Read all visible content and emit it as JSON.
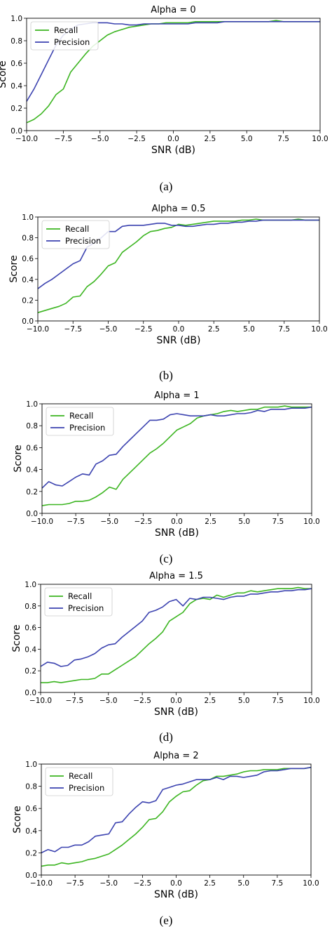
{
  "figure": {
    "line_colors": {
      "Recall": "#3cb521",
      "Precision": "#3c43b0"
    }
  },
  "chart_data": [
    {
      "type": "line",
      "caption": "(a)",
      "title": "Alpha = 0",
      "xlabel": "SNR (dB)",
      "ylabel": "Score",
      "xlim": [
        -10,
        10
      ],
      "ylim": [
        0,
        1.0
      ],
      "xticks": [
        -10.0,
        -7.5,
        -5.0,
        -2.5,
        0.0,
        2.5,
        5.0,
        7.5,
        10.0
      ],
      "xtick_labels": [
        "−10.0",
        "−7.5",
        "−5.0",
        "−2.5",
        "0.0",
        "2.5",
        "5.0",
        "7.5",
        "10.0"
      ],
      "yticks": [
        0.0,
        0.2,
        0.4,
        0.6,
        0.8,
        1.0
      ],
      "ytick_labels": [
        "0.0",
        "0.2",
        "0.4",
        "0.6",
        "0.8",
        "1.0"
      ],
      "legend_position": "top-left",
      "grid": false,
      "series": [
        {
          "name": "Recall",
          "color": "#3cb521",
          "x": [
            -10,
            -9.5,
            -9,
            -8.5,
            -8,
            -7.5,
            -7,
            -6.5,
            -6,
            -5.5,
            -5,
            -4.5,
            -4,
            -3.5,
            -3,
            -2.5,
            -2,
            -1.5,
            -1,
            -0.5,
            0,
            0.5,
            1,
            1.5,
            2,
            2.5,
            3,
            3.5,
            4,
            4.5,
            5,
            5.5,
            6,
            6.5,
            7,
            7.5,
            8,
            8.5,
            9,
            9.5,
            10
          ],
          "y": [
            0.07,
            0.1,
            0.15,
            0.22,
            0.32,
            0.37,
            0.52,
            0.6,
            0.68,
            0.75,
            0.8,
            0.85,
            0.88,
            0.9,
            0.92,
            0.93,
            0.94,
            0.95,
            0.95,
            0.96,
            0.96,
            0.96,
            0.96,
            0.97,
            0.97,
            0.97,
            0.97,
            0.97,
            0.97,
            0.97,
            0.97,
            0.97,
            0.97,
            0.97,
            0.98,
            0.97,
            0.97,
            0.97,
            0.97,
            0.97,
            0.97
          ]
        },
        {
          "name": "Precision",
          "color": "#3c43b0",
          "x": [
            -10,
            -9.5,
            -9,
            -8.5,
            -8,
            -7.5,
            -7,
            -6.5,
            -6,
            -5.5,
            -5,
            -4.5,
            -4,
            -3.5,
            -3,
            -2.5,
            -2,
            -1.5,
            -1,
            -0.5,
            0,
            0.5,
            1,
            1.5,
            2,
            2.5,
            3,
            3.5,
            4,
            4.5,
            5,
            5.5,
            6,
            6.5,
            7,
            7.5,
            8,
            8.5,
            9,
            9.5,
            10
          ],
          "y": [
            0.26,
            0.37,
            0.5,
            0.63,
            0.76,
            0.85,
            0.9,
            0.94,
            0.95,
            0.96,
            0.96,
            0.96,
            0.95,
            0.95,
            0.94,
            0.94,
            0.95,
            0.95,
            0.95,
            0.95,
            0.95,
            0.95,
            0.95,
            0.96,
            0.96,
            0.96,
            0.96,
            0.97,
            0.97,
            0.97,
            0.97,
            0.97,
            0.97,
            0.97,
            0.97,
            0.97,
            0.97,
            0.97,
            0.97,
            0.97,
            0.97
          ]
        }
      ]
    },
    {
      "type": "line",
      "caption": "(b)",
      "title": "Alpha = 0.5",
      "xlabel": "SNR (dB)",
      "ylabel": "Score",
      "xlim": [
        -10,
        10
      ],
      "ylim": [
        0,
        1.0
      ],
      "xticks": [
        -10.0,
        -7.5,
        -5.0,
        -2.5,
        0.0,
        2.5,
        5.0,
        7.5,
        10.0
      ],
      "xtick_labels": [
        "−10.0",
        "−7.5",
        "−5.0",
        "−2.5",
        "0.0",
        "2.5",
        "5.0",
        "7.5",
        "10.0"
      ],
      "yticks": [
        0.0,
        0.2,
        0.4,
        0.6,
        0.8,
        1.0
      ],
      "ytick_labels": [
        "0.0",
        "0.2",
        "0.4",
        "0.6",
        "0.8",
        "1.0"
      ],
      "legend_position": "top-left",
      "grid": false,
      "series": [
        {
          "name": "Recall",
          "color": "#3cb521",
          "x": [
            -10,
            -9.5,
            -9,
            -8.5,
            -8,
            -7.5,
            -7,
            -6.5,
            -6,
            -5.5,
            -5,
            -4.5,
            -4,
            -3.5,
            -3,
            -2.5,
            -2,
            -1.5,
            -1,
            -0.5,
            0,
            0.5,
            1,
            1.5,
            2,
            2.5,
            3,
            3.5,
            4,
            4.5,
            5,
            5.5,
            6,
            6.5,
            7,
            7.5,
            8,
            8.5,
            9,
            9.5,
            10
          ],
          "y": [
            0.08,
            0.1,
            0.12,
            0.14,
            0.17,
            0.23,
            0.24,
            0.33,
            0.38,
            0.45,
            0.53,
            0.56,
            0.66,
            0.71,
            0.76,
            0.82,
            0.86,
            0.87,
            0.89,
            0.9,
            0.93,
            0.92,
            0.93,
            0.94,
            0.95,
            0.96,
            0.96,
            0.96,
            0.96,
            0.97,
            0.97,
            0.98,
            0.97,
            0.97,
            0.97,
            0.97,
            0.97,
            0.98,
            0.97,
            0.97,
            0.97
          ]
        },
        {
          "name": "Precision",
          "color": "#3c43b0",
          "x": [
            -10,
            -9.5,
            -9,
            -8.5,
            -8,
            -7.5,
            -7,
            -6.5,
            -6,
            -5.5,
            -5,
            -4.5,
            -4,
            -3.5,
            -3,
            -2.5,
            -2,
            -1.5,
            -1,
            -0.5,
            0,
            0.5,
            1,
            1.5,
            2,
            2.5,
            3,
            3.5,
            4,
            4.5,
            5,
            5.5,
            6,
            6.5,
            7,
            7.5,
            8,
            8.5,
            9,
            9.5,
            10
          ],
          "y": [
            0.31,
            0.36,
            0.4,
            0.45,
            0.5,
            0.55,
            0.58,
            0.71,
            0.75,
            0.8,
            0.86,
            0.86,
            0.91,
            0.92,
            0.92,
            0.92,
            0.93,
            0.94,
            0.94,
            0.92,
            0.92,
            0.91,
            0.91,
            0.92,
            0.93,
            0.93,
            0.94,
            0.94,
            0.95,
            0.95,
            0.96,
            0.96,
            0.97,
            0.97,
            0.97,
            0.97,
            0.97,
            0.97,
            0.97,
            0.97,
            0.97
          ]
        }
      ]
    },
    {
      "type": "line",
      "caption": "(c)",
      "title": "Alpha = 1",
      "xlabel": "SNR (dB)",
      "ylabel": "Score",
      "xlim": [
        -10,
        10
      ],
      "ylim": [
        0,
        1.0
      ],
      "xticks": [
        -10.0,
        -7.5,
        -5.0,
        -2.5,
        0.0,
        2.5,
        5.0,
        7.5,
        10.0
      ],
      "xtick_labels": [
        "−10.0",
        "−7.5",
        "−5.0",
        "−2.5",
        "0.0",
        "2.5",
        "5.0",
        "7.5",
        "10.0"
      ],
      "yticks": [
        0.0,
        0.2,
        0.4,
        0.6,
        0.8,
        1.0
      ],
      "ytick_labels": [
        "0.0",
        "0.2",
        "0.4",
        "0.6",
        "0.8",
        "1.0"
      ],
      "legend_position": "top-left",
      "grid": false,
      "series": [
        {
          "name": "Recall",
          "color": "#3cb521",
          "x": [
            -10,
            -9.5,
            -9,
            -8.5,
            -8,
            -7.5,
            -7,
            -6.5,
            -6,
            -5.5,
            -5,
            -4.5,
            -4,
            -3.5,
            -3,
            -2.5,
            -2,
            -1.5,
            -1,
            -0.5,
            0,
            0.5,
            1,
            1.5,
            2,
            2.5,
            3,
            3.5,
            4,
            4.5,
            5,
            5.5,
            6,
            6.5,
            7,
            7.5,
            8,
            8.5,
            9,
            9.5,
            10
          ],
          "y": [
            0.07,
            0.08,
            0.08,
            0.08,
            0.09,
            0.11,
            0.11,
            0.12,
            0.15,
            0.19,
            0.24,
            0.22,
            0.31,
            0.37,
            0.43,
            0.49,
            0.55,
            0.59,
            0.64,
            0.7,
            0.76,
            0.79,
            0.82,
            0.87,
            0.89,
            0.9,
            0.91,
            0.93,
            0.94,
            0.93,
            0.94,
            0.95,
            0.95,
            0.97,
            0.97,
            0.97,
            0.98,
            0.97,
            0.97,
            0.97,
            0.97
          ]
        },
        {
          "name": "Precision",
          "color": "#3c43b0",
          "x": [
            -10,
            -9.5,
            -9,
            -8.5,
            -8,
            -7.5,
            -7,
            -6.5,
            -6,
            -5.5,
            -5,
            -4.5,
            -4,
            -3.5,
            -3,
            -2.5,
            -2,
            -1.5,
            -1,
            -0.5,
            0,
            0.5,
            1,
            1.5,
            2,
            2.5,
            3,
            3.5,
            4,
            4.5,
            5,
            5.5,
            6,
            6.5,
            7,
            7.5,
            8,
            8.5,
            9,
            9.5,
            10
          ],
          "y": [
            0.23,
            0.29,
            0.26,
            0.25,
            0.29,
            0.33,
            0.36,
            0.35,
            0.45,
            0.48,
            0.53,
            0.54,
            0.61,
            0.67,
            0.73,
            0.79,
            0.85,
            0.85,
            0.86,
            0.9,
            0.91,
            0.9,
            0.89,
            0.89,
            0.89,
            0.9,
            0.89,
            0.89,
            0.9,
            0.91,
            0.91,
            0.92,
            0.94,
            0.93,
            0.95,
            0.95,
            0.95,
            0.96,
            0.96,
            0.96,
            0.97
          ]
        }
      ]
    },
    {
      "type": "line",
      "caption": "(d)",
      "title": "Alpha = 1.5",
      "xlabel": "SNR (dB)",
      "ylabel": "Score",
      "xlim": [
        -10,
        10
      ],
      "ylim": [
        0,
        1.0
      ],
      "xticks": [
        -10.0,
        -7.5,
        -5.0,
        -2.5,
        0.0,
        2.5,
        5.0,
        7.5,
        10.0
      ],
      "xtick_labels": [
        "−10.0",
        "−7.5",
        "−5.0",
        "−2.5",
        "0.0",
        "2.5",
        "5.0",
        "7.5",
        "10.0"
      ],
      "yticks": [
        0.0,
        0.2,
        0.4,
        0.6,
        0.8,
        1.0
      ],
      "ytick_labels": [
        "0.0",
        "0.2",
        "0.4",
        "0.6",
        "0.8",
        "1.0"
      ],
      "legend_position": "top-left",
      "grid": false,
      "series": [
        {
          "name": "Recall",
          "color": "#3cb521",
          "x": [
            -10,
            -9.5,
            -9,
            -8.5,
            -8,
            -7.5,
            -7,
            -6.5,
            -6,
            -5.5,
            -5,
            -4.5,
            -4,
            -3.5,
            -3,
            -2.5,
            -2,
            -1.5,
            -1,
            -0.5,
            0,
            0.5,
            1,
            1.5,
            2,
            2.5,
            3,
            3.5,
            4,
            4.5,
            5,
            5.5,
            6,
            6.5,
            7,
            7.5,
            8,
            8.5,
            9,
            9.5,
            10
          ],
          "y": [
            0.09,
            0.09,
            0.1,
            0.09,
            0.1,
            0.11,
            0.12,
            0.12,
            0.13,
            0.17,
            0.17,
            0.21,
            0.25,
            0.29,
            0.33,
            0.39,
            0.45,
            0.5,
            0.56,
            0.66,
            0.7,
            0.74,
            0.82,
            0.86,
            0.87,
            0.86,
            0.9,
            0.88,
            0.9,
            0.92,
            0.92,
            0.94,
            0.93,
            0.94,
            0.95,
            0.96,
            0.96,
            0.96,
            0.97,
            0.96,
            0.96
          ]
        },
        {
          "name": "Precision",
          "color": "#3c43b0",
          "x": [
            -10,
            -9.5,
            -9,
            -8.5,
            -8,
            -7.5,
            -7,
            -6.5,
            -6,
            -5.5,
            -5,
            -4.5,
            -4,
            -3.5,
            -3,
            -2.5,
            -2,
            -1.5,
            -1,
            -0.5,
            0,
            0.5,
            1,
            1.5,
            2,
            2.5,
            3,
            3.5,
            4,
            4.5,
            5,
            5.5,
            6,
            6.5,
            7,
            7.5,
            8,
            8.5,
            9,
            9.5,
            10
          ],
          "y": [
            0.24,
            0.28,
            0.27,
            0.24,
            0.25,
            0.3,
            0.31,
            0.33,
            0.36,
            0.41,
            0.44,
            0.45,
            0.51,
            0.56,
            0.61,
            0.66,
            0.74,
            0.76,
            0.79,
            0.84,
            0.86,
            0.8,
            0.87,
            0.86,
            0.88,
            0.88,
            0.87,
            0.86,
            0.88,
            0.89,
            0.89,
            0.91,
            0.91,
            0.92,
            0.93,
            0.93,
            0.94,
            0.94,
            0.95,
            0.95,
            0.96
          ]
        }
      ]
    },
    {
      "type": "line",
      "caption": "(e)",
      "title": "Alpha = 2",
      "xlabel": "SNR (dB)",
      "ylabel": "Score",
      "xlim": [
        -10,
        10
      ],
      "ylim": [
        0,
        1.0
      ],
      "xticks": [
        -10.0,
        -7.5,
        -5.0,
        -2.5,
        0.0,
        2.5,
        5.0,
        7.5,
        10.0
      ],
      "xtick_labels": [
        "−10.0",
        "−7.5",
        "−5.0",
        "−2.5",
        "0.0",
        "2.5",
        "5.0",
        "7.5",
        "10.0"
      ],
      "yticks": [
        0.0,
        0.2,
        0.4,
        0.6,
        0.8,
        1.0
      ],
      "ytick_labels": [
        "0.0",
        "0.2",
        "0.4",
        "0.6",
        "0.8",
        "1.0"
      ],
      "legend_position": "top-left",
      "grid": false,
      "series": [
        {
          "name": "Recall",
          "color": "#3cb521",
          "x": [
            -10,
            -9.5,
            -9,
            -8.5,
            -8,
            -7.5,
            -7,
            -6.5,
            -6,
            -5.5,
            -5,
            -4.5,
            -4,
            -3.5,
            -3,
            -2.5,
            -2,
            -1.5,
            -1,
            -0.5,
            0,
            0.5,
            1,
            1.5,
            2,
            2.5,
            3,
            3.5,
            4,
            4.5,
            5,
            5.5,
            6,
            6.5,
            7,
            7.5,
            8,
            8.5,
            9,
            9.5,
            10
          ],
          "y": [
            0.08,
            0.09,
            0.09,
            0.11,
            0.1,
            0.11,
            0.12,
            0.14,
            0.15,
            0.17,
            0.19,
            0.23,
            0.27,
            0.32,
            0.37,
            0.43,
            0.5,
            0.51,
            0.57,
            0.66,
            0.71,
            0.75,
            0.76,
            0.81,
            0.85,
            0.86,
            0.89,
            0.89,
            0.9,
            0.91,
            0.93,
            0.94,
            0.94,
            0.95,
            0.95,
            0.95,
            0.96,
            0.96,
            0.96,
            0.96,
            0.97
          ]
        },
        {
          "name": "Precision",
          "color": "#3c43b0",
          "x": [
            -10,
            -9.5,
            -9,
            -8.5,
            -8,
            -7.5,
            -7,
            -6.5,
            -6,
            -5.5,
            -5,
            -4.5,
            -4,
            -3.5,
            -3,
            -2.5,
            -2,
            -1.5,
            -1,
            -0.5,
            0,
            0.5,
            1,
            1.5,
            2,
            2.5,
            3,
            3.5,
            4,
            4.5,
            5,
            5.5,
            6,
            6.5,
            7,
            7.5,
            8,
            8.5,
            9,
            9.5,
            10
          ],
          "y": [
            0.2,
            0.23,
            0.21,
            0.25,
            0.25,
            0.27,
            0.27,
            0.3,
            0.35,
            0.36,
            0.37,
            0.47,
            0.48,
            0.55,
            0.61,
            0.66,
            0.65,
            0.67,
            0.77,
            0.79,
            0.81,
            0.82,
            0.84,
            0.86,
            0.86,
            0.86,
            0.88,
            0.86,
            0.89,
            0.89,
            0.88,
            0.89,
            0.9,
            0.93,
            0.94,
            0.94,
            0.95,
            0.96,
            0.96,
            0.96,
            0.97
          ]
        }
      ]
    }
  ]
}
